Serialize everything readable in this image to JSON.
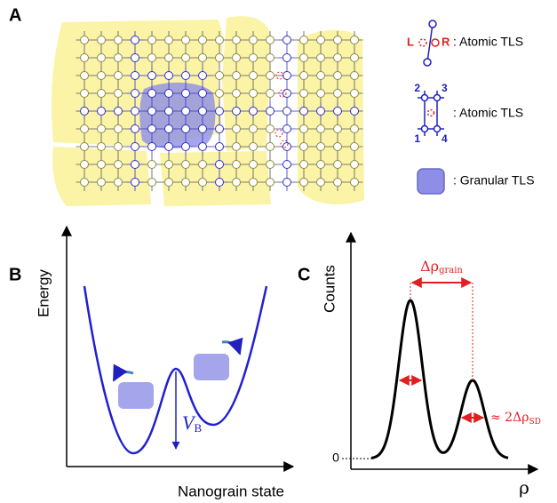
{
  "panel_a": {
    "label": "A",
    "legend": [
      {
        "icon_labels": [
          "L",
          "R"
        ],
        "text": ": Atomic TLS"
      },
      {
        "icon_labels": [
          "2",
          "3",
          "1",
          "4"
        ],
        "text": ": Atomic TLS"
      },
      {
        "text": ": Granular TLS"
      }
    ]
  },
  "panel_b": {
    "label": "B",
    "y_label": "Energy",
    "x_label": "Nanograin state",
    "barrier": {
      "main": "V",
      "sub": "B"
    }
  },
  "panel_c": {
    "label": "C",
    "y_label": "Counts",
    "x_label": "ρ",
    "zero": "0",
    "spacing": {
      "main": "Δρ",
      "sub": "grain"
    },
    "width": {
      "main": "≈ 2Δρ",
      "sub": "SD"
    }
  }
}
